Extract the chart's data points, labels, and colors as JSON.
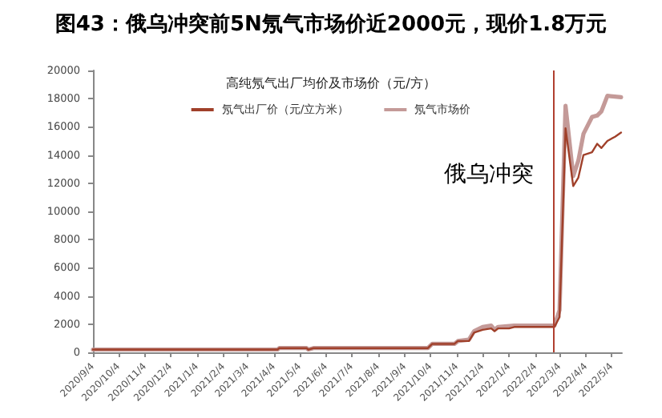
{
  "chart_data": {
    "type": "line",
    "title": "图43：俄乌冲突前5N氖气市场价近2000元，现价1.8万元",
    "legend_title": "高纯氖气出厂均价及市场价（元/方）",
    "legend": "top",
    "grid": false,
    "marker": "none",
    "line_style": "solid",
    "xlim": [
      "2020-09-04",
      "2022-05-16"
    ],
    "xticks": [
      {
        "value": "2020-09-04",
        "label": "2020/9/4"
      },
      {
        "value": "2020-10-04",
        "label": "2020/10/4"
      },
      {
        "value": "2020-11-04",
        "label": "2020/11/4"
      },
      {
        "value": "2020-12-04",
        "label": "2020/12/4"
      },
      {
        "value": "2021-01-04",
        "label": "2021/1/4"
      },
      {
        "value": "2021-02-04",
        "label": "2021/2/4"
      },
      {
        "value": "2021-03-04",
        "label": "2021/3/4"
      },
      {
        "value": "2021-04-04",
        "label": "2021/4/4"
      },
      {
        "value": "2021-05-04",
        "label": "2021/5/4"
      },
      {
        "value": "2021-06-04",
        "label": "2021/6/4"
      },
      {
        "value": "2021-07-04",
        "label": "2021/7/4"
      },
      {
        "value": "2021-08-04",
        "label": "2021/8/4"
      },
      {
        "value": "2021-09-04",
        "label": "2021/9/4"
      },
      {
        "value": "2021-10-04",
        "label": "2021/10/4"
      },
      {
        "value": "2021-11-04",
        "label": "2021/11/4"
      },
      {
        "value": "2021-12-04",
        "label": "2021/12/4"
      },
      {
        "value": "2022-01-04",
        "label": "2022/1/4"
      },
      {
        "value": "2022-02-04",
        "label": "2022/2/4"
      },
      {
        "value": "2022-03-04",
        "label": "2022/3/4"
      },
      {
        "value": "2022-04-04",
        "label": "2022/4/4"
      },
      {
        "value": "2022-05-04",
        "label": "2022/5/4"
      }
    ],
    "ylim": [
      0,
      20000
    ],
    "yticks": [
      0,
      2000,
      4000,
      6000,
      8000,
      10000,
      12000,
      14000,
      16000,
      18000,
      20000
    ],
    "ref_lines": [
      {
        "axis": "x",
        "value": "2022-02-24",
        "label": "俄乌冲突",
        "color": "#b04030"
      }
    ],
    "series": [
      {
        "name": "氖气出厂价（元/立方米）",
        "color": "#a0402a",
        "x": [
          "2020-09-04",
          "2021-04-08",
          "2021-04-10",
          "2021-05-12",
          "2021-05-14",
          "2021-05-20",
          "2021-10-01",
          "2021-10-06",
          "2021-11-01",
          "2021-11-05",
          "2021-11-18",
          "2021-11-24",
          "2021-12-04",
          "2021-12-14",
          "2021-12-18",
          "2021-12-22",
          "2022-01-04",
          "2022-01-10",
          "2022-02-26",
          "2022-03-04",
          "2022-03-11",
          "2022-03-20",
          "2022-03-26",
          "2022-04-01",
          "2022-04-11",
          "2022-04-17",
          "2022-04-22",
          "2022-04-29",
          "2022-05-08",
          "2022-05-15"
        ],
        "values": [
          200,
          200,
          300,
          300,
          200,
          300,
          300,
          600,
          600,
          800,
          800,
          1400,
          1600,
          1700,
          1500,
          1700,
          1700,
          1800,
          1800,
          2500,
          15900,
          11800,
          12400,
          14000,
          14200,
          14800,
          14500,
          15000,
          15300,
          15600
        ]
      },
      {
        "name": "氖气市场价",
        "color": "#c49a98",
        "x": [
          "2020-09-04",
          "2021-04-08",
          "2021-04-10",
          "2021-05-12",
          "2021-05-14",
          "2021-05-20",
          "2021-10-01",
          "2021-10-06",
          "2021-11-01",
          "2021-11-05",
          "2021-11-18",
          "2021-11-24",
          "2021-12-04",
          "2021-12-14",
          "2021-12-18",
          "2021-12-22",
          "2022-01-10",
          "2022-02-26",
          "2022-03-04",
          "2022-03-11",
          "2022-03-20",
          "2022-03-26",
          "2022-04-01",
          "2022-04-11",
          "2022-04-17",
          "2022-04-22",
          "2022-04-29",
          "2022-05-15"
        ],
        "values": [
          200,
          200,
          300,
          300,
          200,
          300,
          300,
          600,
          600,
          800,
          900,
          1500,
          1800,
          1900,
          1600,
          1800,
          1900,
          1900,
          3000,
          17500,
          12500,
          13600,
          15500,
          16700,
          16800,
          17100,
          18200,
          18100
        ]
      }
    ]
  }
}
